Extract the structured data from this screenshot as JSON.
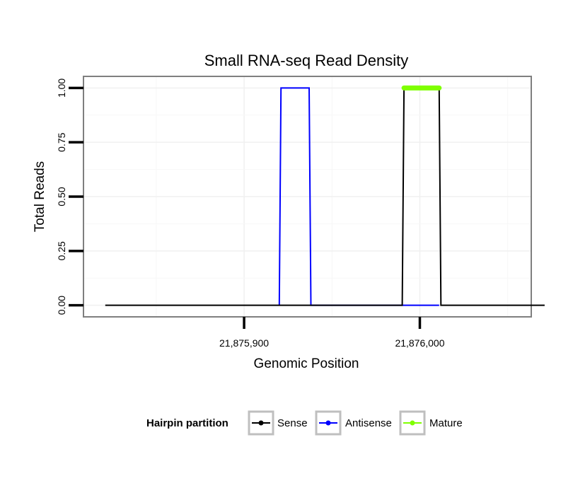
{
  "chart_data": {
    "type": "line",
    "title": "Small RNA-seq Read Density",
    "xlabel": "Genomic Position",
    "ylabel": "Total Reads",
    "xlim": [
      21875809,
      21876063
    ],
    "ylim": [
      -0.05,
      1.05
    ],
    "x_ticks": [
      {
        "value": 21875900,
        "label": "21,875,900"
      },
      {
        "value": 21876000,
        "label": "21,876,000"
      }
    ],
    "y_ticks": [
      {
        "value": 0.0,
        "label": "0.00"
      },
      {
        "value": 0.25,
        "label": "0.25"
      },
      {
        "value": 0.5,
        "label": "0.50"
      },
      {
        "value": 0.75,
        "label": "0.75"
      },
      {
        "value": 1.0,
        "label": "1.00"
      }
    ],
    "series": [
      {
        "name": "Sense",
        "color": "#000000",
        "x": [
          21875821,
          21875990,
          21875991,
          21876011,
          21876012,
          21876071
        ],
        "y": [
          0,
          0,
          1,
          1,
          0,
          0
        ]
      },
      {
        "name": "Antisense",
        "color": "#0000ff",
        "x": [
          21875920,
          21875921,
          21875937,
          21875938,
          21876011
        ],
        "y": [
          0,
          1,
          1,
          0,
          0
        ]
      },
      {
        "name": "Mature",
        "color": "#7fff00",
        "x": [
          21875991,
          21876011
        ],
        "y": [
          1,
          1
        ]
      }
    ],
    "legend": {
      "title": "Hairpin partition",
      "position": "bottom",
      "items": [
        "Sense",
        "Antisense",
        "Mature"
      ]
    },
    "grid": true
  }
}
